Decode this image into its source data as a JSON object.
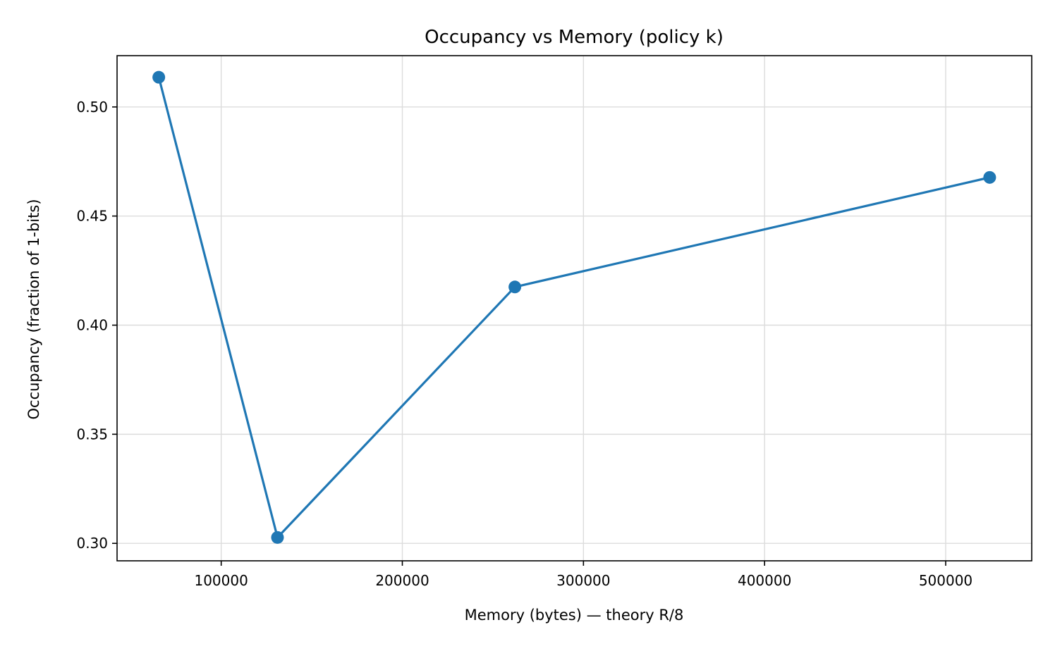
{
  "chart_data": {
    "type": "line",
    "title": "Occupancy vs Memory (policy k)",
    "xlabel": "Memory (bytes) — theory R/8",
    "ylabel": "Occupancy (fraction of 1-bits)",
    "xlim": [
      42500,
      547500
    ],
    "ylim": [
      0.292,
      0.5235
    ],
    "xticks": [
      100000,
      200000,
      300000,
      400000,
      500000
    ],
    "xtick_labels": [
      "100000",
      "200000",
      "300000",
      "400000",
      "500000"
    ],
    "yticks": [
      0.3,
      0.35,
      0.4,
      0.45,
      0.5
    ],
    "ytick_labels": [
      "0.30",
      "0.35",
      "0.40",
      "0.45",
      "0.50"
    ],
    "grid": true,
    "series": [
      {
        "x": [
          65536,
          131072,
          262144,
          524288
        ],
        "y": [
          0.5136,
          0.3027,
          0.4175,
          0.4677
        ],
        "color": "#1f77b4",
        "marker": "circle"
      }
    ]
  }
}
